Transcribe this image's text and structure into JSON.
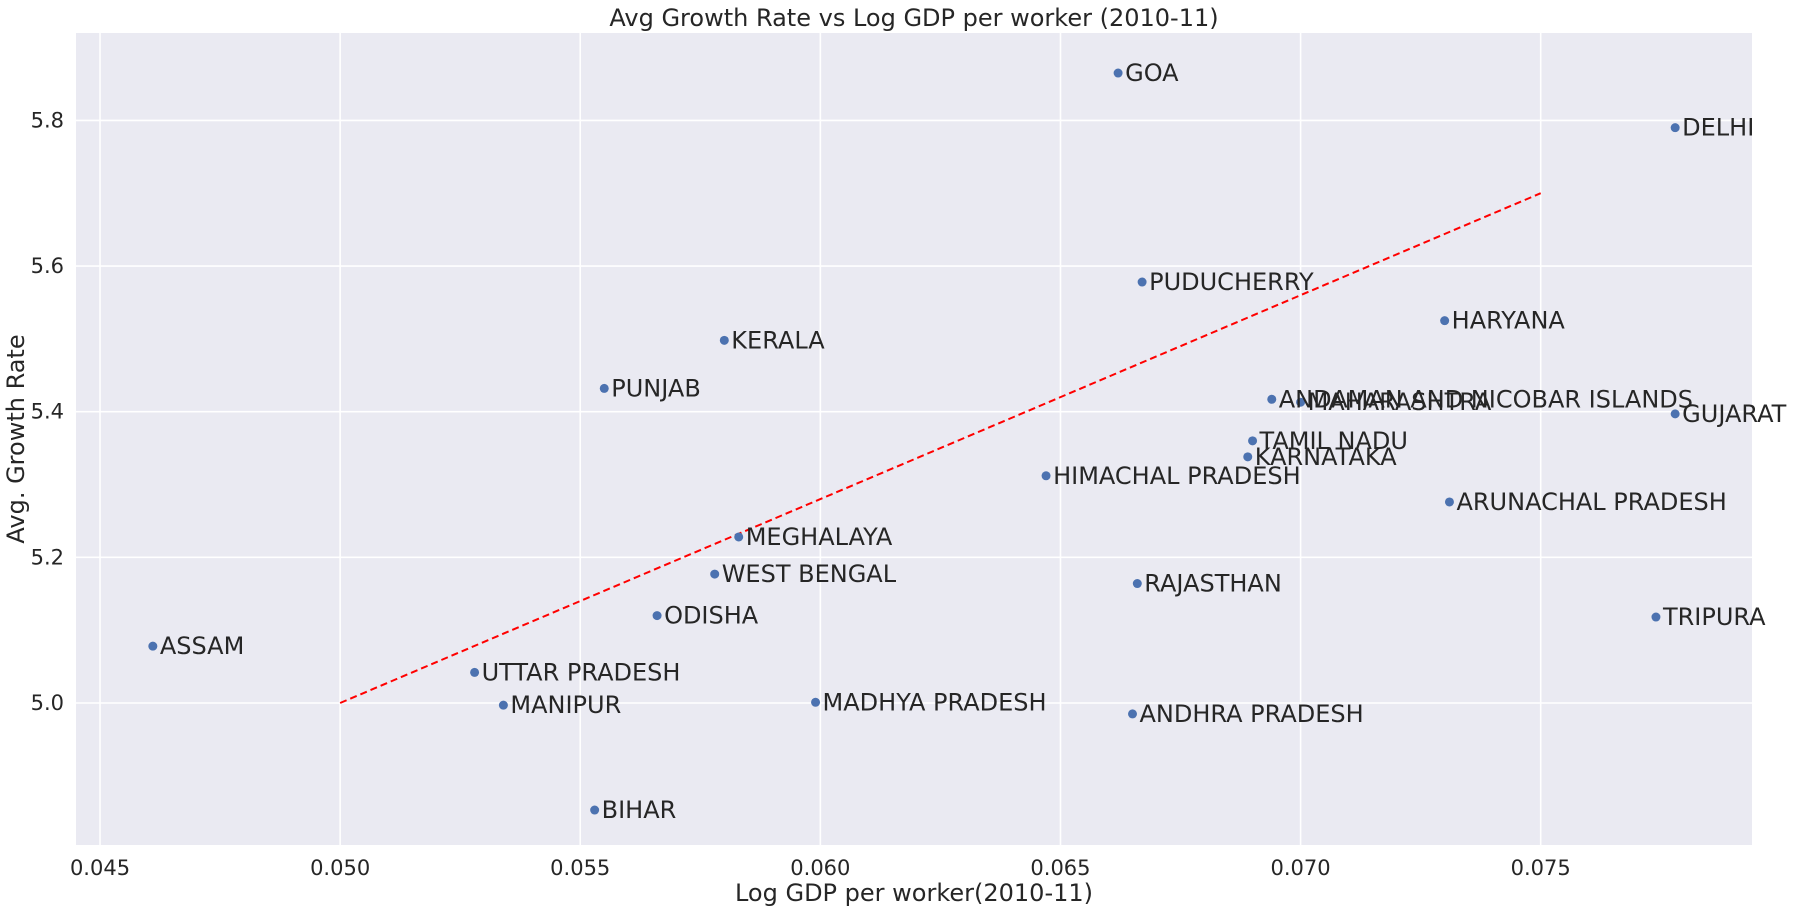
{
  "chart_data": {
    "type": "scatter",
    "title": "Avg Growth Rate vs Log GDP per worker (2010-11)",
    "xlabel": "Log GDP per worker(2010-11)",
    "ylabel": "Avg. Growth Rate",
    "xlim": [
      0.0445,
      0.0794
    ],
    "ylim": [
      4.805,
      5.92
    ],
    "xticks": [
      0.045,
      0.05,
      0.055,
      0.06,
      0.065,
      0.07,
      0.075
    ],
    "xtick_labels": [
      "0.045",
      "0.050",
      "0.055",
      "0.060",
      "0.065",
      "0.070",
      "0.075"
    ],
    "yticks": [
      5.0,
      5.2,
      5.4,
      5.6,
      5.8
    ],
    "ytick_labels": [
      "5.0",
      "5.2",
      "5.4",
      "5.6",
      "5.8"
    ],
    "grid": true,
    "background": "#eaeaf2",
    "point_color": "#4c72b0",
    "line_color": "#ff0000",
    "points": [
      {
        "label": "GOA",
        "x": 0.0662,
        "y": 5.865
      },
      {
        "label": "DELHI",
        "x": 0.0778,
        "y": 5.79
      },
      {
        "label": "PUDUCHERRY",
        "x": 0.0667,
        "y": 5.578
      },
      {
        "label": "HARYANA",
        "x": 0.073,
        "y": 5.525
      },
      {
        "label": "KERALA",
        "x": 0.058,
        "y": 5.498
      },
      {
        "label": "PUNJAB",
        "x": 0.0555,
        "y": 5.432
      },
      {
        "label": "ANDAMAN AND NICOBAR ISLANDS",
        "x": 0.0694,
        "y": 5.417
      },
      {
        "label": "MAHARASHTRA",
        "x": 0.07,
        "y": 5.413
      },
      {
        "label": "GUJARAT",
        "x": 0.0778,
        "y": 5.397
      },
      {
        "label": "TAMIL NADU",
        "x": 0.069,
        "y": 5.36
      },
      {
        "label": "KARNATAKA",
        "x": 0.0689,
        "y": 5.338
      },
      {
        "label": "HIMACHAL PRADESH",
        "x": 0.0647,
        "y": 5.312
      },
      {
        "label": "ARUNACHAL PRADESH",
        "x": 0.0731,
        "y": 5.276
      },
      {
        "label": "MEGHALAYA",
        "x": 0.0583,
        "y": 5.228
      },
      {
        "label": "WEST BENGAL",
        "x": 0.0578,
        "y": 5.177
      },
      {
        "label": "RAJASTHAN",
        "x": 0.0666,
        "y": 5.164
      },
      {
        "label": "ODISHA",
        "x": 0.0566,
        "y": 5.12
      },
      {
        "label": "TRIPURA",
        "x": 0.0774,
        "y": 5.118
      },
      {
        "label": "ASSAM",
        "x": 0.0461,
        "y": 5.078
      },
      {
        "label": "UTTAR PRADESH",
        "x": 0.0528,
        "y": 5.042
      },
      {
        "label": "MADHYA PRADESH",
        "x": 0.0599,
        "y": 5.001
      },
      {
        "label": "MANIPUR",
        "x": 0.0534,
        "y": 4.997
      },
      {
        "label": "ANDHRA PRADESH",
        "x": 0.0665,
        "y": 4.985
      },
      {
        "label": "BIHAR",
        "x": 0.0553,
        "y": 4.853
      }
    ],
    "fit_line": {
      "x": [
        0.05,
        0.075
      ],
      "y": [
        5.0,
        5.7
      ]
    }
  }
}
